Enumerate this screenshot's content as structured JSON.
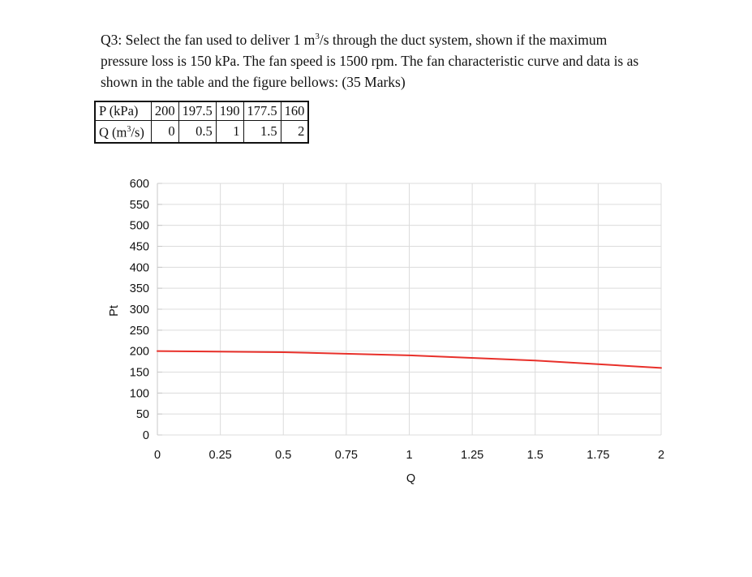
{
  "question": {
    "line1_pre": "Q3: Select the fan used to deliver 1 m",
    "line1_sup": "3",
    "line1_post": "/s through the duct system, shown if the maximum",
    "line2": "pressure loss is 150 kPa. The fan speed is 1500 rpm. The fan characteristic curve and data is as",
    "line3": "shown in the table and the figure bellows: (35 Marks)"
  },
  "table": {
    "p_header": "P (kPa)",
    "q_header_pre": "Q (m",
    "q_header_sup": "3",
    "q_header_post": "/s)",
    "p_values": [
      "200",
      "197.5",
      "190",
      "177.5",
      "160"
    ],
    "q_values": [
      "0",
      "0.5",
      "1",
      "1.5",
      "2"
    ]
  },
  "chart_data": {
    "type": "line",
    "title": "",
    "xlabel": "Q",
    "ylabel": "Pt",
    "xlim": [
      0,
      2
    ],
    "ylim": [
      0,
      600
    ],
    "x_ticks": [
      "0",
      "0.25",
      "0.5",
      "0.75",
      "1",
      "1.25",
      "1.5",
      "1.75",
      "2"
    ],
    "y_ticks": [
      "0",
      "50",
      "100",
      "150",
      "200",
      "250",
      "300",
      "350",
      "400",
      "450",
      "500",
      "550",
      "600"
    ],
    "grid": true,
    "series": [
      {
        "x": [
          0,
          0.5,
          1,
          1.5,
          2
        ],
        "values": [
          200,
          197.5,
          190,
          177.5,
          160
        ],
        "color": "#e8302a"
      }
    ]
  }
}
